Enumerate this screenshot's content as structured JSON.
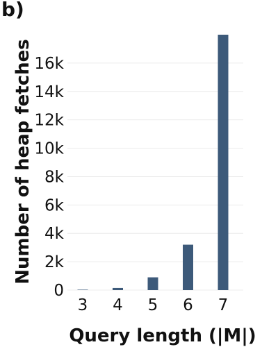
{
  "panel_label": "b)",
  "chart_data": {
    "type": "bar",
    "categories": [
      "3",
      "4",
      "5",
      "6",
      "7"
    ],
    "values": [
      30,
      150,
      900,
      3200,
      18000
    ],
    "xlabel": "Query length (|M|)",
    "ylabel": "Number of heap fetches",
    "ylim": [
      0,
      18000
    ],
    "yticks": [
      0,
      2000,
      4000,
      6000,
      8000,
      10000,
      12000,
      14000,
      16000
    ],
    "ytick_labels": [
      "0",
      "2k",
      "4k",
      "6k",
      "8k",
      "10k",
      "12k",
      "14k",
      "16k"
    ],
    "grid": true,
    "bar_color": "#3d5a7a",
    "grid_color": "#ececec"
  }
}
